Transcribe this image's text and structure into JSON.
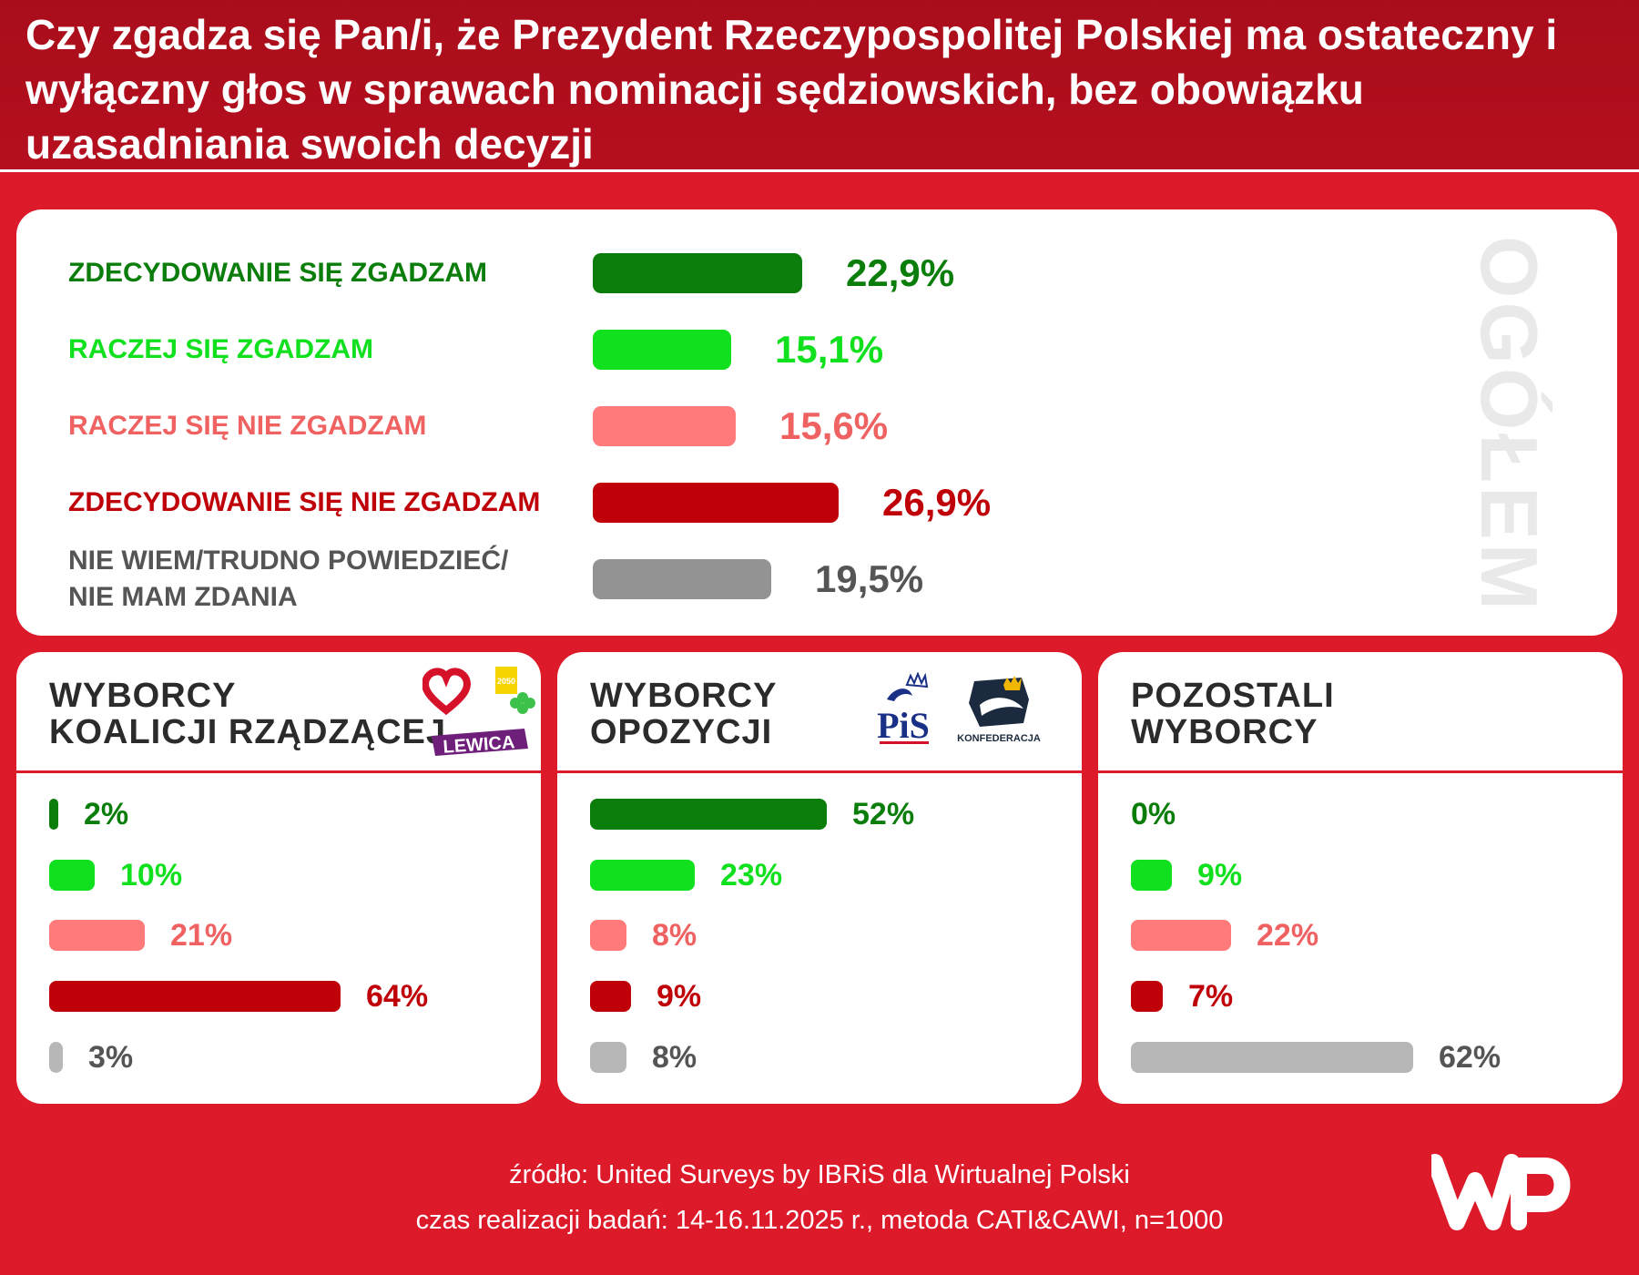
{
  "title": "Czy zgadza się Pan/i, że Prezydent Rzeczypospolitej Polskiej ma ostateczny i wyłączny głos w sprawach nominacji sędziowskich, bez obowiązku uzasadniania swoich decyzji",
  "watermark": "OGÓŁEM",
  "colors": {
    "strongly_agree": "#0a7d0a",
    "somewhat_agree": "#10e01d",
    "somewhat_disagree": "#ff7a7a",
    "strongly_disagree": "#c00008",
    "dont_know": "#939393",
    "dont_know_light": "#b7b7b7",
    "dont_know_text": "#555555",
    "background": "#dc1a2a"
  },
  "chart_data": [
    {
      "type": "bar",
      "title": "OGÓŁEM",
      "categories": [
        "ZDECYDOWANIE SIĘ ZGADZAM",
        "RACZEJ SIĘ ZGADZAM",
        "RACZEJ SIĘ NIE ZGADZAM",
        "ZDECYDOWANIE SIĘ NIE ZGADZAM",
        "NIE WIEM/TRUDNO POWIEDZIEĆ/ NIE MAM ZDANIA"
      ],
      "category_lines": [
        [
          "ZDECYDOWANIE SIĘ ZGADZAM"
        ],
        [
          "RACZEJ SIĘ ZGADZAM"
        ],
        [
          "RACZEJ SIĘ NIE ZGADZAM"
        ],
        [
          "ZDECYDOWANIE SIĘ NIE ZGADZAM"
        ],
        [
          "NIE WIEM/TRUDNO POWIEDZIEĆ/",
          "NIE MAM ZDANIA"
        ]
      ],
      "values": [
        22.9,
        15.1,
        15.6,
        26.9,
        19.5
      ],
      "value_labels": [
        "22,9%",
        "15,1%",
        "15,6%",
        "26,9%",
        "19,5%"
      ],
      "unit": "%"
    },
    {
      "type": "bar",
      "title": "WYBORCY KOALICJI RZĄDZĄCEJ",
      "title_lines": [
        "WYBORCY",
        "KOALICJI RZĄDZĄCEJ"
      ],
      "logo_text": "LEWICA",
      "logo_badge": "2050",
      "categories": [
        "ZDECYDOWANIE SIĘ ZGADZAM",
        "RACZEJ SIĘ ZGADZAM",
        "RACZEJ SIĘ NIE ZGADZAM",
        "ZDECYDOWANIE SIĘ NIE ZGADZAM",
        "NIE WIEM/TRUDNO POWIEDZIEĆ/ NIE MAM ZDANIA"
      ],
      "values": [
        2,
        10,
        21,
        64,
        3
      ],
      "value_labels": [
        "2%",
        "10%",
        "21%",
        "64%",
        "3%"
      ],
      "unit": "%"
    },
    {
      "type": "bar",
      "title": "WYBORCY OPOZYCJI",
      "title_lines": [
        "WYBORCY",
        "OPOZYCJI"
      ],
      "logo_text": "PiS",
      "logo_text_2": "KONFEDERACJA",
      "categories": [
        "ZDECYDOWANIE SIĘ ZGADZAM",
        "RACZEJ SIĘ ZGADZAM",
        "RACZEJ SIĘ NIE ZGADZAM",
        "ZDECYDOWANIE SIĘ NIE ZGADZAM",
        "NIE WIEM/TRUDNO POWIEDZIEĆ/ NIE MAM ZDANIA"
      ],
      "values": [
        52,
        23,
        8,
        9,
        8
      ],
      "value_labels": [
        "52%",
        "23%",
        "8%",
        "9%",
        "8%"
      ],
      "unit": "%"
    },
    {
      "type": "bar",
      "title": "POZOSTALI WYBORCY",
      "title_lines": [
        "POZOSTALI",
        "WYBORCY"
      ],
      "categories": [
        "ZDECYDOWANIE SIĘ ZGADZAM",
        "RACZEJ SIĘ ZGADZAM",
        "RACZEJ SIĘ NIE ZGADZAM",
        "ZDECYDOWANIE SIĘ NIE ZGADZAM",
        "NIE WIEM/TRUDNO POWIEDZIEĆ/ NIE MAM ZDANIA"
      ],
      "values": [
        0,
        9,
        22,
        7,
        62
      ],
      "value_labels": [
        "0%",
        "9%",
        "22%",
        "7%",
        "62%"
      ],
      "unit": "%"
    }
  ],
  "footer": {
    "source": "źródło: United Surveys by IBRiS dla Wirtualnej Polski",
    "method": "czas realizacji badań: 14-16.11.2025 r., metoda CATI&CAWI, n=1000"
  },
  "brand": {
    "name": "WP"
  }
}
